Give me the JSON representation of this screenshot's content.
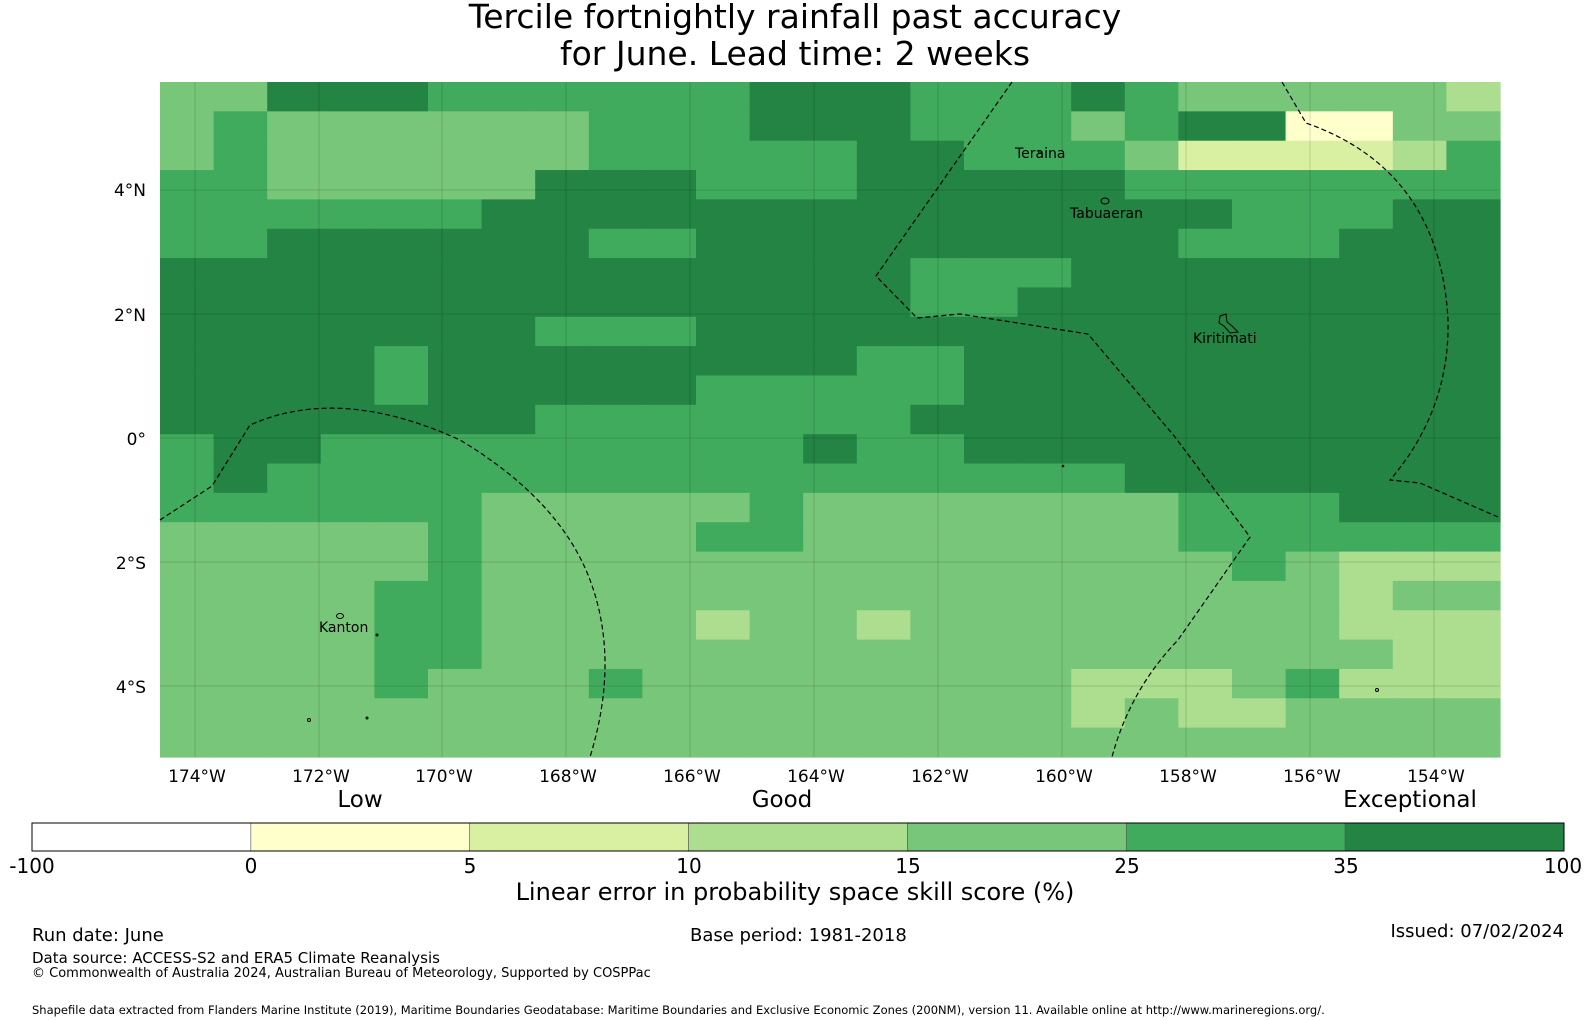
{
  "title": {
    "line1": "Tercile fortnightly rainfall past accuracy",
    "line2": "for June. Lead time: 2 weeks"
  },
  "map": {
    "lon_range": [
      -174.6,
      -152.9
    ],
    "lat_range": [
      -5.1,
      5.8
    ],
    "cell_size_deg": 0.833,
    "lat_labels": [
      "4°N",
      "2°N",
      "0°",
      "2°S",
      "4°S"
    ],
    "lon_labels": [
      "174°W",
      "172°W",
      "170°W",
      "168°W",
      "166°W",
      "164°W",
      "162°W",
      "160°W",
      "158°W",
      "156°W",
      "154°W"
    ],
    "places": {
      "teraina": "Teraina",
      "tabuaeran": "Tabuaeran",
      "kiritimati": "Kiritimati",
      "kanton": "Kanton"
    },
    "skill_grid_class_rows_north_to_south": [
      "4466655555566655565444443",
      "4544444455566655545661144",
      "4544444455555665554222235",
      "5544444666555666665555555",
      "5555556666666666666655566",
      "5566666655666666666555666",
      "6666666666666655566666666",
      "6666666666666655666666666",
      "6666666555666666666666666",
      "6666566666666556666666666",
      "6666566666555556666666666",
      "6666666555555566666666666",
      "5665555555556556666666666",
      "5655555555555555556666666",
      "5555554444454444444555666",
      "4444454444554444444555555",
      "4444454444444444444454333",
      "4444554444444444444444344",
      "4444554444344344444444333",
      "4444554444444444444444433",
      "4444544454444444433345333",
      "4444444444444444434334444",
      "4444444444444444444444444"
    ]
  },
  "legend": {
    "category_labels": [
      "Low",
      "Good",
      "Exceptional"
    ],
    "tick_labels": [
      "-100",
      "0",
      "5",
      "10",
      "15",
      "25",
      "35",
      "100"
    ],
    "colors": [
      "#ffffff",
      "#ffffcc",
      "#d9f0a3",
      "#addd8e",
      "#78c679",
      "#41ab5d",
      "#238443"
    ],
    "title": "Linear error in probability space skill score (%)"
  },
  "footer": {
    "run_date": "Run date: June",
    "base_period": "Base period: 1981-2018",
    "issued": "Issued: 07/02/2024",
    "data_source": "Data source: ACCESS-S2 and ERA5 Climate Reanalysis",
    "copyright": "© Commonwealth of Australia 2024, Australian Bureau of Meteorology, Supported by COSPPac",
    "shapefile_credit": "Shapefile data extracted from Flanders Marine Institute (2019), Maritime Boundaries Geodatabase: Maritime Boundaries and Exclusive Economic Zones (200NM), version 11. Available online at http://www.marineregions.org/."
  }
}
